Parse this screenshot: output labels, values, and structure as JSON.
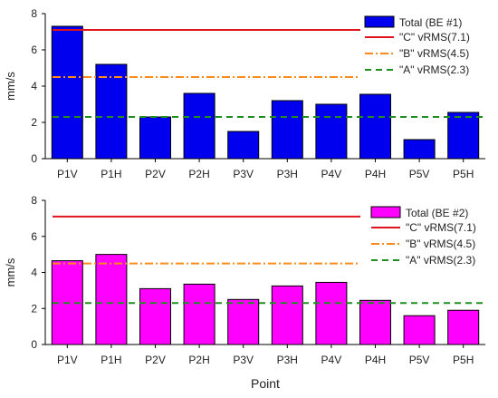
{
  "chart_data": [
    {
      "type": "bar",
      "categories": [
        "P1V",
        "P1H",
        "P2V",
        "P2H",
        "P3V",
        "P3H",
        "P4V",
        "P4H",
        "P5V",
        "P5H"
      ],
      "series": [
        {
          "name": "Total (BE #1)",
          "values": [
            7.3,
            5.2,
            2.3,
            3.6,
            1.5,
            3.2,
            3.0,
            3.55,
            1.05,
            2.55
          ],
          "color": "#0000ee"
        }
      ],
      "reference_lines": [
        {
          "name": "\"C\" vRMS(7.1)",
          "value": 7.1,
          "color": "#e0141e",
          "style": "solid"
        },
        {
          "name": "\"B\" vRMS(4.5)",
          "value": 4.5,
          "color": "#ff8c1a",
          "style": "dash-dot"
        },
        {
          "name": "\"A\"  vRMS(2.3)",
          "value": 2.3,
          "color": "#1f8f1f",
          "style": "dashed"
        }
      ],
      "ylabel": "mm/s",
      "xlabel": "",
      "ylim": [
        0,
        8
      ],
      "yticks": [
        0,
        2,
        4,
        6,
        8
      ],
      "grid": false,
      "legend_position": "top-right"
    },
    {
      "type": "bar",
      "categories": [
        "P1V",
        "P1H",
        "P2V",
        "P2H",
        "P3V",
        "P3H",
        "P4V",
        "P4H",
        "P5V",
        "P5H"
      ],
      "series": [
        {
          "name": "Total (BE #2)",
          "values": [
            4.65,
            5.0,
            3.1,
            3.35,
            2.5,
            3.25,
            3.45,
            2.45,
            1.6,
            1.9
          ],
          "color": "#ff00ff"
        }
      ],
      "reference_lines": [
        {
          "name": "\"C\" vRMS(7.1)",
          "value": 7.1,
          "color": "#e0141e",
          "style": "solid"
        },
        {
          "name": "\"B\" vRMS(4.5)",
          "value": 4.5,
          "color": "#ff8c1a",
          "style": "dash-dot"
        },
        {
          "name": "\"A\"  vRMS(2.3)",
          "value": 2.3,
          "color": "#1f8f1f",
          "style": "dashed"
        }
      ],
      "ylabel": "mm/s",
      "xlabel": "Point",
      "ylim": [
        0,
        8
      ],
      "yticks": [
        0,
        2,
        4,
        6,
        8
      ],
      "grid": false,
      "legend_position": "top-right"
    }
  ]
}
